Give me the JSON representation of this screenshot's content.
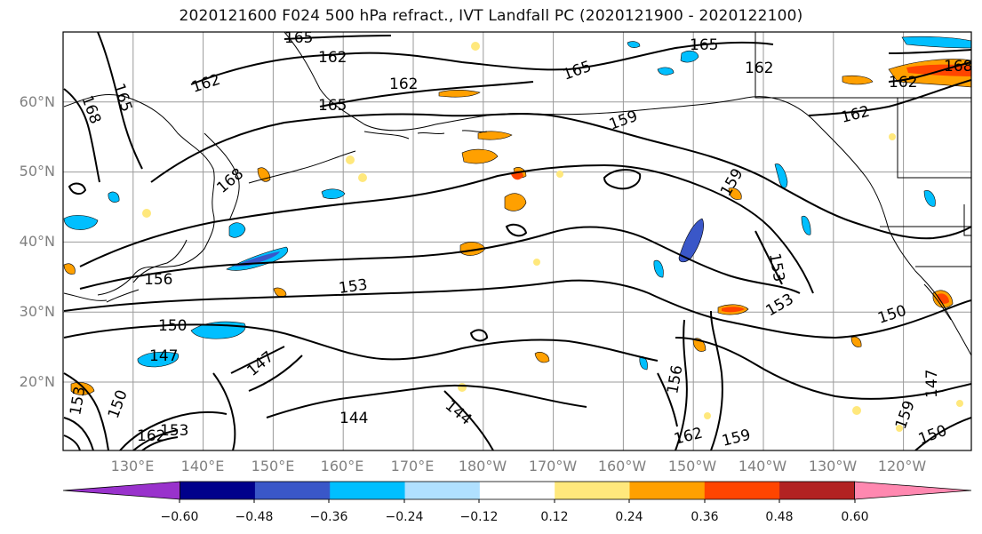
{
  "title": "2020121600 F024 500 hPa refract., IVT Landfall PC (2020121900 - 2020122100)",
  "map": {
    "lon_labels": [
      "130°E",
      "140°E",
      "150°E",
      "160°E",
      "170°E",
      "180°W",
      "170°W",
      "160°W",
      "150°W",
      "140°W",
      "130°W",
      "120°W"
    ],
    "lat_labels": [
      "60°N",
      "50°N",
      "40°N",
      "30°N",
      "20°N"
    ],
    "contour_labels": [
      "165",
      "162",
      "165",
      "162",
      "165",
      "162",
      "165",
      "168",
      "165",
      "162",
      "168",
      "162",
      "162",
      "159",
      "159",
      "168",
      "156",
      "153",
      "150",
      "147",
      "147",
      "153",
      "153",
      "144",
      "144",
      "156",
      "162",
      "159",
      "153",
      "150",
      "147",
      "150",
      "162",
      "153",
      "150",
      "159"
    ]
  },
  "colorbar": {
    "colors": [
      "#9932cc",
      "#00008b",
      "#3a57c8",
      "#00bfff",
      "#b0e0ff",
      "#ffffff",
      "#ffe87c",
      "#ffa000",
      "#ff4500",
      "#b22222",
      "#ff88b0"
    ],
    "tick_labels": [
      "−0.60",
      "−0.48",
      "−0.36",
      "−0.24",
      "−0.12",
      "0.12",
      "0.24",
      "0.36",
      "0.48",
      "0.60"
    ]
  }
}
